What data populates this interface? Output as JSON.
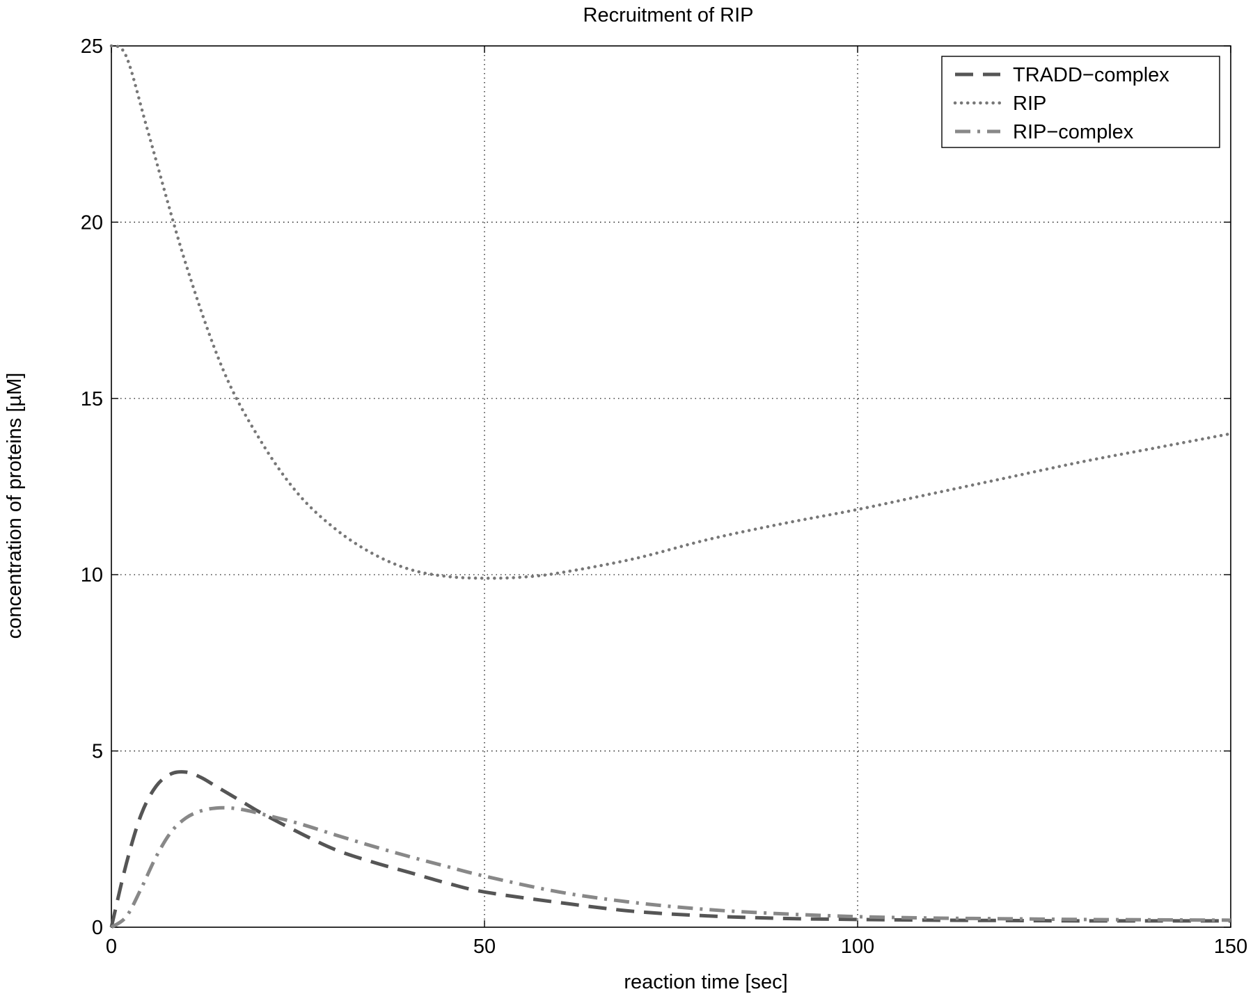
{
  "chart_data": {
    "type": "line",
    "title": "Recruitment of RIP",
    "xlabel": "reaction time [sec]",
    "ylabel": "concentration of proteins [µM]",
    "xlim": [
      0,
      150
    ],
    "ylim": [
      0,
      25
    ],
    "xticks": [
      0,
      50,
      100,
      150
    ],
    "yticks": [
      0,
      5,
      10,
      15,
      20,
      25
    ],
    "xtick_labels": [
      "0",
      "50",
      "100",
      "150"
    ],
    "ytick_labels": [
      "0",
      "5",
      "10",
      "15",
      "20",
      "25"
    ],
    "grid": true,
    "legend_position": "top-right",
    "series": [
      {
        "name": "TRADD−complex",
        "style": "dashed",
        "color": "#555555",
        "x": [
          0,
          2,
          4,
          6,
          8,
          10,
          12,
          14,
          16,
          18,
          20,
          25,
          30,
          35,
          40,
          45,
          50,
          60,
          70,
          80,
          90,
          100,
          110,
          120,
          130,
          140,
          150
        ],
        "y": [
          0,
          1.8,
          3.2,
          4.0,
          4.35,
          4.4,
          4.25,
          4.0,
          3.75,
          3.5,
          3.25,
          2.7,
          2.2,
          1.85,
          1.55,
          1.25,
          1.0,
          0.7,
          0.45,
          0.32,
          0.25,
          0.22,
          0.2,
          0.19,
          0.18,
          0.18,
          0.18
        ]
      },
      {
        "name": "RIP",
        "style": "dotted",
        "color": "#777777",
        "x": [
          0,
          2,
          5,
          10,
          15,
          20,
          25,
          30,
          35,
          40,
          45,
          50,
          55,
          60,
          70,
          80,
          90,
          100,
          110,
          120,
          130,
          140,
          150
        ],
        "y": [
          25,
          24.7,
          22.5,
          18.8,
          15.8,
          13.8,
          12.3,
          11.3,
          10.6,
          10.15,
          9.95,
          9.9,
          9.93,
          10.05,
          10.45,
          11.0,
          11.45,
          11.85,
          12.3,
          12.75,
          13.2,
          13.6,
          14.0
        ]
      },
      {
        "name": "RIP−complex",
        "style": "dashdot",
        "color": "#888888",
        "x": [
          0,
          2,
          4,
          6,
          8,
          10,
          12,
          14,
          16,
          18,
          20,
          25,
          30,
          35,
          40,
          45,
          50,
          60,
          70,
          80,
          90,
          100,
          110,
          120,
          130,
          140,
          150
        ],
        "y": [
          0,
          0.3,
          1.1,
          2.0,
          2.7,
          3.1,
          3.3,
          3.38,
          3.38,
          3.32,
          3.22,
          2.95,
          2.62,
          2.3,
          2.0,
          1.72,
          1.45,
          1.0,
          0.7,
          0.5,
          0.38,
          0.3,
          0.26,
          0.24,
          0.22,
          0.21,
          0.2
        ]
      }
    ]
  }
}
